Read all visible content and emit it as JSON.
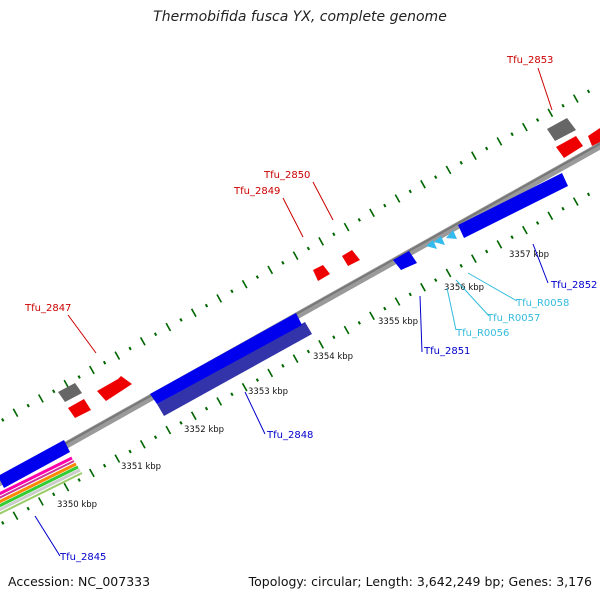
{
  "title": "Thermobifida fusca YX, complete genome",
  "footer": {
    "accession": "Accession: NC_007333",
    "summary": "Topology: circular; Length: 3,642,249 bp; Genes: 3,176"
  },
  "colors": {
    "backbone": "#808080",
    "forward_gene": "#ff0000",
    "forward_other": "#606060",
    "reverse_gene": "#0000ff",
    "reverse_pseudo": "#333399",
    "reverse_rna": "#33ccff",
    "tick": "#006600"
  },
  "scale_labels": [
    "3350 kbp",
    "3351 kbp",
    "3352 kbp",
    "3353 kbp",
    "3354 kbp",
    "3355 kbp",
    "3356 kbp",
    "3357 kbp"
  ],
  "genes": [
    {
      "name": "Tfu_2845",
      "strand": "reverse",
      "kind": "gene"
    },
    {
      "name": "Tfu_2847",
      "strand": "forward",
      "kind": "gene"
    },
    {
      "name": "Tfu_2848",
      "strand": "reverse",
      "kind": "pseudo"
    },
    {
      "name": "Tfu_2849",
      "strand": "forward",
      "kind": "gene"
    },
    {
      "name": "Tfu_2850",
      "strand": "forward",
      "kind": "gene"
    },
    {
      "name": "Tfu_2851",
      "strand": "reverse",
      "kind": "gene"
    },
    {
      "name": "Tfu_R0056",
      "strand": "reverse",
      "kind": "rna"
    },
    {
      "name": "Tfu_R0057",
      "strand": "reverse",
      "kind": "rna"
    },
    {
      "name": "Tfu_R0058",
      "strand": "reverse",
      "kind": "rna"
    },
    {
      "name": "Tfu_2852",
      "strand": "reverse",
      "kind": "gene"
    },
    {
      "name": "Tfu_2853",
      "strand": "forward",
      "kind": "gene"
    }
  ]
}
